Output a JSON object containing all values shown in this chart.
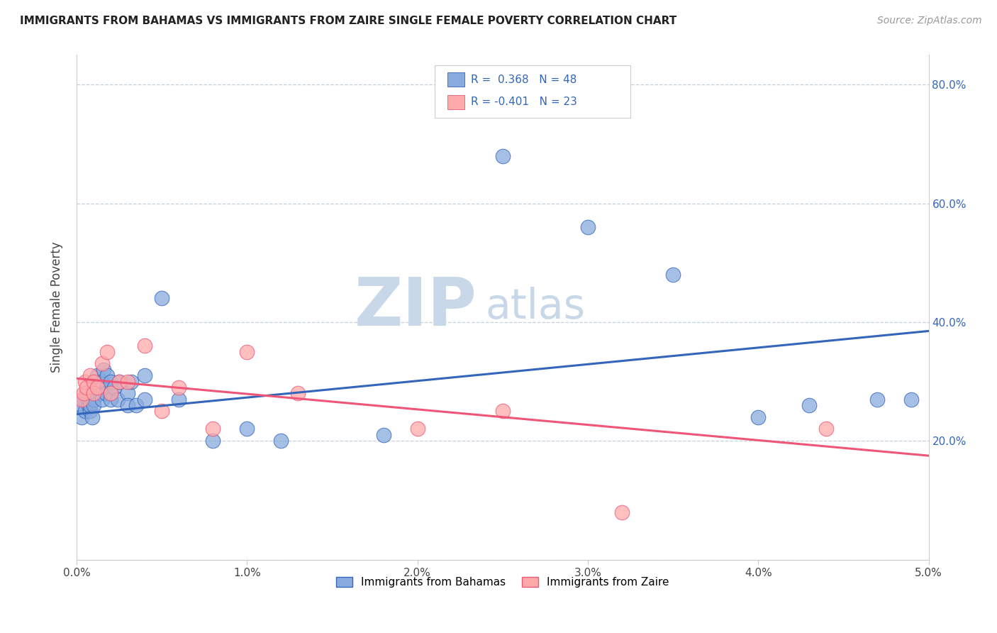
{
  "title": "IMMIGRANTS FROM BAHAMAS VS IMMIGRANTS FROM ZAIRE SINGLE FEMALE POVERTY CORRELATION CHART",
  "source": "Source: ZipAtlas.com",
  "ylabel": "Single Female Poverty",
  "xlim": [
    0.0,
    0.05
  ],
  "ylim": [
    0.0,
    0.85
  ],
  "xticks": [
    0.0,
    0.01,
    0.02,
    0.03,
    0.04,
    0.05
  ],
  "xticklabels": [
    "0.0%",
    "1.0%",
    "2.0%",
    "3.0%",
    "4.0%",
    "5.0%"
  ],
  "yticks": [
    0.0,
    0.2,
    0.4,
    0.6,
    0.8
  ],
  "right_yticks": [
    0.2,
    0.4,
    0.6,
    0.8
  ],
  "right_yticklabels": [
    "20.0%",
    "40.0%",
    "60.0%",
    "80.0%"
  ],
  "color_blue": "#88AADD",
  "color_pink": "#FFAAAA",
  "color_blue_line": "#3366BB",
  "color_pink_line": "#EE5577",
  "watermark_zip": "ZIP",
  "watermark_atlas": "atlas",
  "watermark_color": "#C8D8E8",
  "bahamas_x": [
    0.0003,
    0.0003,
    0.0004,
    0.0005,
    0.0006,
    0.0007,
    0.0007,
    0.0008,
    0.0008,
    0.0009,
    0.001,
    0.001,
    0.001,
    0.001,
    0.001,
    0.0012,
    0.0013,
    0.0014,
    0.0015,
    0.0015,
    0.0016,
    0.0017,
    0.0018,
    0.002,
    0.002,
    0.002,
    0.0022,
    0.0024,
    0.0025,
    0.003,
    0.003,
    0.0032,
    0.0035,
    0.004,
    0.004,
    0.005,
    0.006,
    0.008,
    0.01,
    0.012,
    0.018,
    0.025,
    0.03,
    0.035,
    0.04,
    0.043,
    0.047,
    0.049
  ],
  "bahamas_y": [
    0.26,
    0.24,
    0.27,
    0.25,
    0.28,
    0.26,
    0.27,
    0.25,
    0.26,
    0.24,
    0.3,
    0.28,
    0.29,
    0.27,
    0.26,
    0.31,
    0.29,
    0.28,
    0.3,
    0.27,
    0.32,
    0.28,
    0.31,
    0.28,
    0.27,
    0.3,
    0.29,
    0.27,
    0.3,
    0.28,
    0.26,
    0.3,
    0.26,
    0.31,
    0.27,
    0.44,
    0.27,
    0.2,
    0.22,
    0.2,
    0.21,
    0.68,
    0.56,
    0.48,
    0.24,
    0.26,
    0.27,
    0.27
  ],
  "zaire_x": [
    0.0003,
    0.0004,
    0.0005,
    0.0006,
    0.0008,
    0.001,
    0.001,
    0.0012,
    0.0015,
    0.0018,
    0.002,
    0.0025,
    0.003,
    0.004,
    0.005,
    0.006,
    0.008,
    0.01,
    0.013,
    0.02,
    0.025,
    0.032,
    0.044
  ],
  "zaire_y": [
    0.27,
    0.28,
    0.3,
    0.29,
    0.31,
    0.3,
    0.28,
    0.29,
    0.33,
    0.35,
    0.28,
    0.3,
    0.3,
    0.36,
    0.25,
    0.29,
    0.22,
    0.35,
    0.28,
    0.22,
    0.25,
    0.08,
    0.22
  ],
  "blue_line_x0": 0.0,
  "blue_line_y0": 0.245,
  "blue_line_x1": 0.05,
  "blue_line_y1": 0.385,
  "pink_line_x0": 0.0,
  "pink_line_y0": 0.305,
  "pink_line_x1": 0.05,
  "pink_line_y1": 0.175
}
